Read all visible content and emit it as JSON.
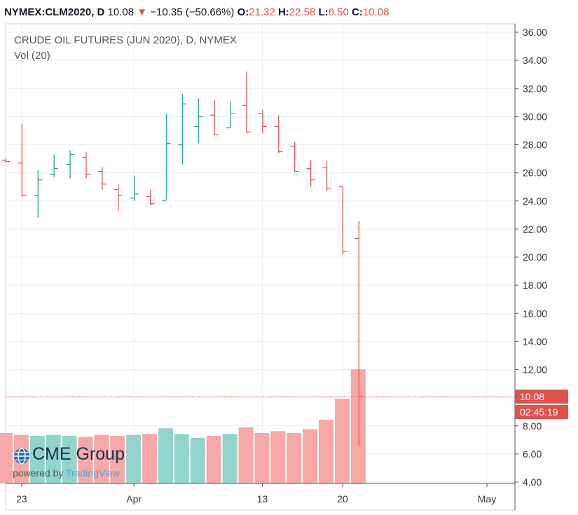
{
  "header": {
    "symbol": "NYMEX:CLM2020, D",
    "last": "10.08",
    "arrow": "▼",
    "change": "−10.35 (−50.66%)",
    "o_label": "O:",
    "o_value": "21.32",
    "h_label": "H:",
    "h_value": "22.58",
    "l_label": "L:",
    "l_value": "6.50",
    "c_label": "C:",
    "c_value": "10.08"
  },
  "price_label": "10.08",
  "countdown": "02:45:19",
  "logo": {
    "name": "CME Group",
    "powered": "powered by",
    "brand": "TradingView"
  },
  "colors": {
    "up": "#26a69a",
    "down": "#ef5350",
    "vol_up": "#91d4cb",
    "vol_down": "#f5a8a6",
    "accent": "#e0514a"
  },
  "chart_data": {
    "type": "ohlc",
    "title": "CRUDE OIL FUTURES (JUN 2020), D, NYMEX",
    "subtitle": "Vol (20)",
    "ylim": [
      4,
      36
    ],
    "y_ticks": [
      "36.00",
      "34.00",
      "32.00",
      "30.00",
      "28.00",
      "26.00",
      "24.00",
      "22.00",
      "20.00",
      "18.00",
      "16.00",
      "14.00",
      "12.00",
      "10.00",
      "8.00",
      "6.00",
      "4.00"
    ],
    "x_ticks": [
      {
        "label": "23",
        "index": 1
      },
      {
        "label": "Apr",
        "index": 8
      },
      {
        "label": "13",
        "index": 16
      },
      {
        "label": "20",
        "index": 21
      },
      {
        "label": "May",
        "index": 30
      }
    ],
    "bars": [
      {
        "o": 26.9,
        "h": 27.0,
        "l": 26.7,
        "c": 26.8,
        "v": 5.3
      },
      {
        "o": 26.7,
        "h": 29.5,
        "l": 24.3,
        "c": 24.4,
        "v": 5.1
      },
      {
        "o": 24.4,
        "h": 26.2,
        "l": 22.8,
        "c": 25.5,
        "v": 5.0
      },
      {
        "o": 25.9,
        "h": 27.3,
        "l": 25.7,
        "c": 26.3,
        "v": 5.1
      },
      {
        "o": 26.6,
        "h": 27.6,
        "l": 25.6,
        "c": 27.3,
        "v": 5.0
      },
      {
        "o": 27.1,
        "h": 27.5,
        "l": 25.6,
        "c": 25.9,
        "v": 4.9
      },
      {
        "o": 26.1,
        "h": 26.4,
        "l": 24.8,
        "c": 25.2,
        "v": 5.1
      },
      {
        "o": 24.8,
        "h": 25.2,
        "l": 23.3,
        "c": 24.4,
        "v": 5.0
      },
      {
        "o": 24.2,
        "h": 25.8,
        "l": 24.0,
        "c": 24.5,
        "v": 5.1
      },
      {
        "o": 24.3,
        "h": 24.8,
        "l": 23.7,
        "c": 23.8,
        "v": 5.2
      },
      {
        "o": 24.0,
        "h": 30.2,
        "l": 24.1,
        "c": 28.1,
        "v": 5.8
      },
      {
        "o": 28.0,
        "h": 31.6,
        "l": 26.6,
        "c": 30.9,
        "v": 5.2
      },
      {
        "o": 29.3,
        "h": 31.3,
        "l": 28.1,
        "c": 30.0,
        "v": 4.8
      },
      {
        "o": 30.1,
        "h": 31.2,
        "l": 28.7,
        "c": 28.7,
        "v": 5.0
      },
      {
        "o": 29.2,
        "h": 31.1,
        "l": 29.2,
        "c": 30.2,
        "v": 5.2
      },
      {
        "o": 30.8,
        "h": 33.2,
        "l": 28.8,
        "c": 28.9,
        "v": 5.9
      },
      {
        "o": 30.2,
        "h": 30.5,
        "l": 28.8,
        "c": 29.3,
        "v": 5.3
      },
      {
        "o": 29.3,
        "h": 30.1,
        "l": 27.4,
        "c": 27.5,
        "v": 5.5
      },
      {
        "o": 27.9,
        "h": 28.2,
        "l": 26.1,
        "c": 26.1,
        "v": 5.3
      },
      {
        "o": 26.3,
        "h": 26.9,
        "l": 25.0,
        "c": 25.5,
        "v": 5.7
      },
      {
        "o": 26.4,
        "h": 26.8,
        "l": 24.7,
        "c": 24.9,
        "v": 6.7
      },
      {
        "o": 25.0,
        "h": 25.0,
        "l": 20.2,
        "c": 20.4,
        "v": 8.9
      },
      {
        "o": 21.32,
        "h": 22.58,
        "l": 6.5,
        "c": 10.08,
        "v": 12.0
      }
    ]
  }
}
